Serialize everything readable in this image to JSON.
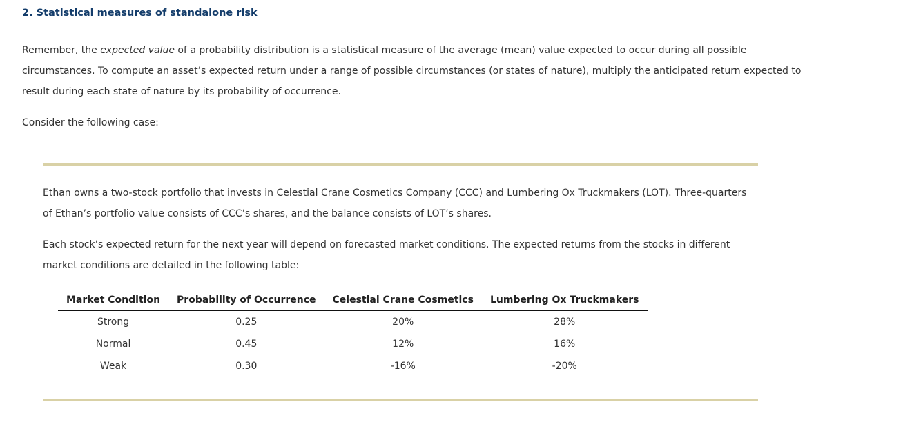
{
  "title": "2. Statistical measures of standalone risk",
  "intro": {
    "before_em": "Remember, the ",
    "em": "expected value",
    "after_em": " of a probability distribution is a statistical measure of the average (mean) value expected to occur during all possible circumstances. To compute an asset’s expected return under a range of possible circumstances (or states of nature), multiply the anticipated return expected to result during each state of nature by its probability of occurrence."
  },
  "consider": "Consider the following case:",
  "case": {
    "p1": "Ethan owns a two-stock portfolio that invests in Celestial Crane Cosmetics Company (CCC) and Lumbering Ox Truckmakers (LOT). Three-quarters of Ethan’s portfolio value consists of CCC’s shares, and the balance consists of LOT’s shares.",
    "p2": "Each stock’s expected return for the next year will depend on forecasted market conditions. The expected returns from the stocks in different market conditions are detailed in the following table:"
  },
  "table": {
    "headers": [
      "Market Condition",
      "Probability of Occurrence",
      "Celestial Crane Cosmetics",
      "Lumbering Ox Truckmakers"
    ],
    "rows": [
      [
        "Strong",
        "0.25",
        "20%",
        "28%"
      ],
      [
        "Normal",
        "0.45",
        "12%",
        "16%"
      ],
      [
        "Weak",
        "0.30",
        "-16%",
        "-20%"
      ]
    ]
  },
  "colors": {
    "title": "#143d6b",
    "rule": "#d9d1a6"
  }
}
